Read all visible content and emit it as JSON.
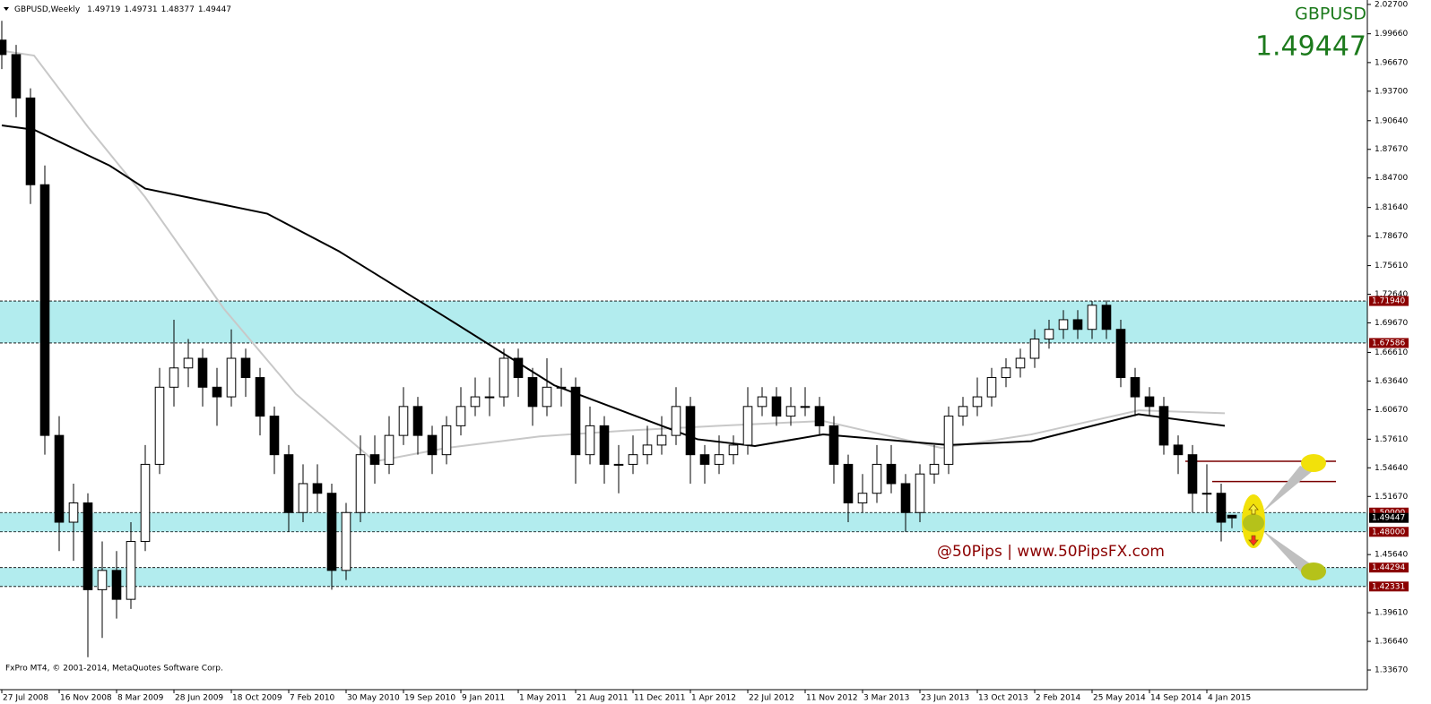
{
  "header": {
    "symbol": "GBPUSD,Weekly",
    "values": [
      1.49719,
      1.49731,
      1.48377,
      1.49447
    ]
  },
  "chart_data": {
    "type": "candlestick",
    "symbol_label": "GBPUSD",
    "last_price": 1.49447,
    "xlim": [
      -0.5,
      380.75
    ],
    "ylim": [
      1.3163,
      2.0316
    ],
    "xticks": [
      {
        "value": 0,
        "label": "27 Jul 2008"
      },
      {
        "value": 16,
        "label": "16 Nov 2008"
      },
      {
        "value": 32,
        "label": "8 Mar 2009"
      },
      {
        "value": 48,
        "label": "28 Jun 2009"
      },
      {
        "value": 64,
        "label": "18 Oct 2009"
      },
      {
        "value": 80,
        "label": "7 Feb 2010"
      },
      {
        "value": 96,
        "label": "30 May 2010"
      },
      {
        "value": 112,
        "label": "19 Sep 2010"
      },
      {
        "value": 128,
        "label": "9 Jan 2011"
      },
      {
        "value": 144,
        "label": "1 May 2011"
      },
      {
        "value": 160,
        "label": "21 Aug 2011"
      },
      {
        "value": 176,
        "label": "11 Dec 2011"
      },
      {
        "value": 192,
        "label": "1 Apr 2012"
      },
      {
        "value": 208,
        "label": "22 Jul 2012"
      },
      {
        "value": 224,
        "label": "11 Nov 2012"
      },
      {
        "value": 240,
        "label": "3 Mar 2013"
      },
      {
        "value": 256,
        "label": "23 Jun 2013"
      },
      {
        "value": 272,
        "label": "13 Oct 2013"
      },
      {
        "value": 288,
        "label": "2 Feb 2014"
      },
      {
        "value": 304,
        "label": "25 May 2014"
      },
      {
        "value": 320,
        "label": "14 Sep 2014"
      },
      {
        "value": 336,
        "label": "4 Jan 2015"
      }
    ],
    "yticks": [
      {
        "value": 2.027,
        "label": "2.02700"
      },
      {
        "value": 1.9966,
        "label": "1.99660"
      },
      {
        "value": 1.9667,
        "label": "1.96670"
      },
      {
        "value": 1.937,
        "label": "1.93700"
      },
      {
        "value": 1.9064,
        "label": "1.90640"
      },
      {
        "value": 1.8767,
        "label": "1.87670"
      },
      {
        "value": 1.847,
        "label": "1.84700"
      },
      {
        "value": 1.8164,
        "label": "1.81640"
      },
      {
        "value": 1.7867,
        "label": "1.78670"
      },
      {
        "value": 1.7561,
        "label": "1.75610"
      },
      {
        "value": 1.7264,
        "label": "1.72640"
      },
      {
        "value": 1.6967,
        "label": "1.69670"
      },
      {
        "value": 1.6661,
        "label": "1.66610"
      },
      {
        "value": 1.6364,
        "label": "1.63640"
      },
      {
        "value": 1.6067,
        "label": "1.60670"
      },
      {
        "value": 1.5761,
        "label": "1.57610"
      },
      {
        "value": 1.5464,
        "label": "1.54640"
      },
      {
        "value": 1.5167,
        "label": "1.51670"
      },
      {
        "value": 1.4564,
        "label": "1.45640"
      },
      {
        "value": 1.3961,
        "label": "1.39610"
      },
      {
        "value": 1.3664,
        "label": "1.36640"
      },
      {
        "value": 1.3367,
        "label": "1.33670"
      }
    ],
    "x": [
      0,
      4,
      8,
      12,
      16,
      20,
      24,
      28,
      32,
      36,
      40,
      44,
      48,
      52,
      56,
      60,
      64,
      68,
      72,
      76,
      80,
      84,
      88,
      92,
      96,
      100,
      104,
      108,
      112,
      116,
      120,
      124,
      128,
      132,
      136,
      140,
      144,
      148,
      152,
      156,
      160,
      164,
      168,
      172,
      176,
      180,
      184,
      188,
      192,
      196,
      200,
      204,
      208,
      212,
      216,
      220,
      224,
      228,
      232,
      236,
      240,
      244,
      248,
      252,
      256,
      260,
      264,
      268,
      272,
      276,
      280,
      284,
      288,
      292,
      296,
      300,
      304,
      308,
      312,
      316,
      320,
      324,
      328,
      332,
      336,
      340,
      343
    ],
    "open": [
      1.99,
      1.975,
      1.93,
      1.84,
      1.58,
      1.49,
      1.51,
      1.42,
      1.44,
      1.41,
      1.47,
      1.55,
      1.63,
      1.65,
      1.66,
      1.63,
      1.62,
      1.66,
      1.64,
      1.6,
      1.56,
      1.5,
      1.53,
      1.52,
      1.44,
      1.5,
      1.56,
      1.55,
      1.58,
      1.61,
      1.58,
      1.56,
      1.59,
      1.61,
      1.62,
      1.62,
      1.66,
      1.64,
      1.61,
      1.63,
      1.63,
      1.56,
      1.59,
      1.55,
      1.55,
      1.56,
      1.57,
      1.58,
      1.61,
      1.56,
      1.55,
      1.56,
      1.57,
      1.61,
      1.62,
      1.6,
      1.61,
      1.61,
      1.59,
      1.55,
      1.51,
      1.52,
      1.55,
      1.53,
      1.5,
      1.54,
      1.55,
      1.6,
      1.61,
      1.62,
      1.64,
      1.65,
      1.66,
      1.68,
      1.69,
      1.7,
      1.69,
      1.715,
      1.69,
      1.64,
      1.62,
      1.61,
      1.57,
      1.56,
      1.52,
      1.52,
      1.49719
    ],
    "high": [
      2.01,
      1.985,
      1.94,
      1.86,
      1.6,
      1.53,
      1.52,
      1.47,
      1.46,
      1.49,
      1.57,
      1.65,
      1.7,
      1.68,
      1.67,
      1.65,
      1.69,
      1.67,
      1.65,
      1.61,
      1.57,
      1.55,
      1.55,
      1.53,
      1.51,
      1.58,
      1.58,
      1.6,
      1.63,
      1.62,
      1.59,
      1.6,
      1.63,
      1.64,
      1.64,
      1.67,
      1.67,
      1.65,
      1.66,
      1.65,
      1.64,
      1.61,
      1.6,
      1.57,
      1.58,
      1.59,
      1.6,
      1.63,
      1.62,
      1.57,
      1.58,
      1.58,
      1.63,
      1.63,
      1.63,
      1.63,
      1.63,
      1.62,
      1.6,
      1.56,
      1.54,
      1.57,
      1.57,
      1.54,
      1.55,
      1.57,
      1.61,
      1.62,
      1.64,
      1.65,
      1.66,
      1.67,
      1.69,
      1.7,
      1.71,
      1.71,
      1.7194,
      1.72,
      1.7,
      1.65,
      1.63,
      1.62,
      1.58,
      1.57,
      1.55,
      1.53,
      1.49731
    ],
    "low": [
      1.96,
      1.91,
      1.82,
      1.56,
      1.46,
      1.45,
      1.35,
      1.37,
      1.39,
      1.4,
      1.46,
      1.54,
      1.61,
      1.63,
      1.61,
      1.59,
      1.61,
      1.62,
      1.58,
      1.54,
      1.48,
      1.49,
      1.5,
      1.42,
      1.43,
      1.49,
      1.53,
      1.54,
      1.57,
      1.56,
      1.54,
      1.55,
      1.58,
      1.6,
      1.6,
      1.61,
      1.62,
      1.59,
      1.6,
      1.61,
      1.53,
      1.55,
      1.53,
      1.52,
      1.54,
      1.55,
      1.56,
      1.57,
      1.53,
      1.53,
      1.54,
      1.55,
      1.56,
      1.6,
      1.59,
      1.59,
      1.6,
      1.58,
      1.53,
      1.49,
      1.5,
      1.51,
      1.52,
      1.48,
      1.49,
      1.53,
      1.54,
      1.59,
      1.6,
      1.61,
      1.63,
      1.64,
      1.65,
      1.67,
      1.68,
      1.68,
      1.68,
      1.68,
      1.63,
      1.6,
      1.6,
      1.56,
      1.54,
      1.5,
      1.5,
      1.47,
      1.48377
    ],
    "close": [
      1.975,
      1.93,
      1.84,
      1.58,
      1.49,
      1.51,
      1.42,
      1.44,
      1.41,
      1.47,
      1.55,
      1.63,
      1.65,
      1.66,
      1.63,
      1.62,
      1.66,
      1.64,
      1.6,
      1.56,
      1.5,
      1.53,
      1.52,
      1.44,
      1.5,
      1.56,
      1.55,
      1.58,
      1.61,
      1.58,
      1.56,
      1.59,
      1.61,
      1.62,
      1.62,
      1.66,
      1.64,
      1.61,
      1.63,
      1.63,
      1.56,
      1.59,
      1.55,
      1.55,
      1.56,
      1.57,
      1.58,
      1.61,
      1.56,
      1.55,
      1.56,
      1.57,
      1.61,
      1.62,
      1.6,
      1.61,
      1.61,
      1.59,
      1.55,
      1.51,
      1.52,
      1.55,
      1.53,
      1.5,
      1.54,
      1.55,
      1.6,
      1.61,
      1.62,
      1.64,
      1.65,
      1.66,
      1.68,
      1.69,
      1.7,
      1.69,
      1.715,
      1.69,
      1.64,
      1.62,
      1.61,
      1.57,
      1.56,
      1.52,
      1.52,
      1.49,
      1.49447
    ],
    "moving_averages": [
      {
        "color": "#c8c8c8",
        "x": [
          0,
          9,
          24,
          40,
          62,
          82,
          104,
          124,
          150,
          174,
          200,
          229,
          262,
          287,
          317,
          341
        ],
        "values": [
          1.979,
          1.974,
          1.9,
          1.827,
          1.711,
          1.623,
          1.553,
          1.567,
          1.579,
          1.585,
          1.59,
          1.595,
          1.567,
          1.581,
          1.606,
          1.603
        ]
      },
      {
        "color": "#000000",
        "x": [
          0,
          9,
          30,
          40,
          74,
          94,
          124,
          154,
          194,
          210,
          229,
          264,
          287,
          317,
          341
        ],
        "values": [
          1.9015,
          1.897,
          1.86,
          1.836,
          1.81,
          1.771,
          1.702,
          1.632,
          1.576,
          1.569,
          1.581,
          1.57,
          1.574,
          1.602,
          1.59
        ]
      }
    ],
    "zones": [
      {
        "top": {
          "value": 1.7194,
          "label": "1.71940"
        },
        "bottom": {
          "value": 1.67586,
          "label": "1.67586"
        }
      },
      {
        "top": {
          "value": 1.5,
          "label": "1.50000"
        },
        "bottom": {
          "value": 1.48,
          "label": "1.48000"
        }
      },
      {
        "top": {
          "value": 1.44294,
          "label": "1.44294"
        },
        "bottom": {
          "value": 1.42331,
          "label": "1.42331"
        }
      }
    ],
    "zone_color": "#b2ecee",
    "resistance_lines": [
      {
        "value": 1.5532,
        "x": [
          330,
          372
        ]
      },
      {
        "value": 1.5322,
        "x": [
          337.5,
          372
        ]
      }
    ],
    "resistance_color": "#7a0000"
  },
  "watermark": "@50Pips | www.50PipsFX.com",
  "copyright": "FxPro MT4, © 2001-2014, MetaQuotes Software Corp."
}
